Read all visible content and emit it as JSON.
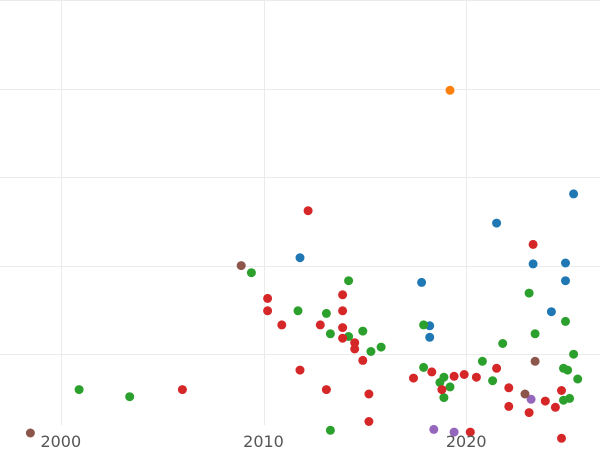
{
  "chart_data": {
    "type": "scatter",
    "title": "",
    "xlabel": "",
    "ylabel": "",
    "xlim": [
      1997.0,
      2026.6
    ],
    "ylim": [
      -0.8,
      4.0
    ],
    "x_ticks": [
      2000,
      2010,
      2020
    ],
    "x_tick_labels": [
      "2000",
      "2010",
      "2020"
    ],
    "y_gridlines": [
      0.0,
      1.0,
      2.0,
      3.0,
      4.0
    ],
    "show_y_tick_labels": false,
    "legend": "none",
    "colors": {
      "blue": "#1f77b4",
      "orange": "#ff7f0e",
      "green": "#2ca02c",
      "red": "#d62728",
      "purple": "#9467bd",
      "brown": "#8c564b"
    },
    "series": [
      {
        "color": "#1f77b4",
        "points": [
          {
            "x": 2011.8,
            "y": 1.09
          },
          {
            "x": 2017.8,
            "y": 0.81
          },
          {
            "x": 2018.2,
            "y": 0.32
          },
          {
            "x": 2018.2,
            "y": 0.19
          },
          {
            "x": 2021.5,
            "y": 1.48
          },
          {
            "x": 2023.3,
            "y": 1.02
          },
          {
            "x": 2024.2,
            "y": 0.48
          },
          {
            "x": 2024.9,
            "y": 1.03
          },
          {
            "x": 2024.9,
            "y": 0.83
          },
          {
            "x": 2025.3,
            "y": 1.81
          }
        ]
      },
      {
        "color": "#ff7f0e",
        "points": [
          {
            "x": 2019.2,
            "y": 2.98
          }
        ]
      },
      {
        "color": "#2ca02c",
        "points": [
          {
            "x": 2000.9,
            "y": -0.4
          },
          {
            "x": 2003.4,
            "y": -0.48
          },
          {
            "x": 2009.4,
            "y": 0.92
          },
          {
            "x": 2011.7,
            "y": 0.49
          },
          {
            "x": 2013.1,
            "y": 0.46
          },
          {
            "x": 2013.3,
            "y": 0.23
          },
          {
            "x": 2013.3,
            "y": -0.86
          },
          {
            "x": 2014.2,
            "y": 0.83
          },
          {
            "x": 2014.2,
            "y": 0.2
          },
          {
            "x": 2014.9,
            "y": 0.26
          },
          {
            "x": 2015.3,
            "y": 0.03
          },
          {
            "x": 2015.8,
            "y": 0.08
          },
          {
            "x": 2017.9,
            "y": 0.33
          },
          {
            "x": 2017.9,
            "y": -0.15
          },
          {
            "x": 2018.7,
            "y": -0.32
          },
          {
            "x": 2018.9,
            "y": -0.26
          },
          {
            "x": 2018.9,
            "y": -0.49
          },
          {
            "x": 2019.2,
            "y": -0.37
          },
          {
            "x": 2020.8,
            "y": -0.08
          },
          {
            "x": 2021.3,
            "y": -0.3
          },
          {
            "x": 2021.8,
            "y": 0.12
          },
          {
            "x": 2023.1,
            "y": 0.69
          },
          {
            "x": 2023.4,
            "y": 0.23
          },
          {
            "x": 2024.8,
            "y": -0.16
          },
          {
            "x": 2024.8,
            "y": -0.52
          },
          {
            "x": 2024.9,
            "y": 0.37
          },
          {
            "x": 2025.0,
            "y": -0.18
          },
          {
            "x": 2025.1,
            "y": -0.5
          },
          {
            "x": 2025.3,
            "y": 0.0
          },
          {
            "x": 2025.5,
            "y": -0.28
          }
        ]
      },
      {
        "color": "#d62728",
        "points": [
          {
            "x": 2006.0,
            "y": -0.4
          },
          {
            "x": 2010.2,
            "y": 0.63
          },
          {
            "x": 2010.2,
            "y": 0.49
          },
          {
            "x": 2010.9,
            "y": 0.33
          },
          {
            "x": 2011.8,
            "y": -0.18
          },
          {
            "x": 2012.2,
            "y": 1.62
          },
          {
            "x": 2012.8,
            "y": 0.33
          },
          {
            "x": 2013.1,
            "y": -0.4
          },
          {
            "x": 2013.9,
            "y": 0.67
          },
          {
            "x": 2013.9,
            "y": 0.49
          },
          {
            "x": 2013.9,
            "y": 0.3
          },
          {
            "x": 2013.9,
            "y": 0.18
          },
          {
            "x": 2014.5,
            "y": 0.13
          },
          {
            "x": 2014.5,
            "y": 0.06
          },
          {
            "x": 2014.9,
            "y": -0.07
          },
          {
            "x": 2015.2,
            "y": -0.45
          },
          {
            "x": 2015.2,
            "y": -0.76
          },
          {
            "x": 2017.4,
            "y": -0.27
          },
          {
            "x": 2018.3,
            "y": -0.2
          },
          {
            "x": 2018.8,
            "y": -0.4
          },
          {
            "x": 2019.4,
            "y": -0.25
          },
          {
            "x": 2019.9,
            "y": -0.23
          },
          {
            "x": 2020.2,
            "y": -0.88
          },
          {
            "x": 2020.5,
            "y": -0.26
          },
          {
            "x": 2021.5,
            "y": -0.16
          },
          {
            "x": 2022.1,
            "y": -0.38
          },
          {
            "x": 2022.1,
            "y": -0.59
          },
          {
            "x": 2023.1,
            "y": -0.66
          },
          {
            "x": 2023.3,
            "y": 1.24
          },
          {
            "x": 2023.9,
            "y": -0.53
          },
          {
            "x": 2024.4,
            "y": -0.6
          },
          {
            "x": 2024.7,
            "y": -0.41
          },
          {
            "x": 2024.7,
            "y": -0.95
          }
        ]
      },
      {
        "color": "#9467bd",
        "points": [
          {
            "x": 2018.4,
            "y": -0.85
          },
          {
            "x": 2019.4,
            "y": -0.88
          },
          {
            "x": 2023.2,
            "y": -0.51
          }
        ]
      },
      {
        "color": "#8c564b",
        "points": [
          {
            "x": 1998.5,
            "y": -0.89
          },
          {
            "x": 2008.9,
            "y": 1.0
          },
          {
            "x": 2022.9,
            "y": -0.45
          },
          {
            "x": 2023.4,
            "y": -0.08
          }
        ]
      }
    ]
  }
}
